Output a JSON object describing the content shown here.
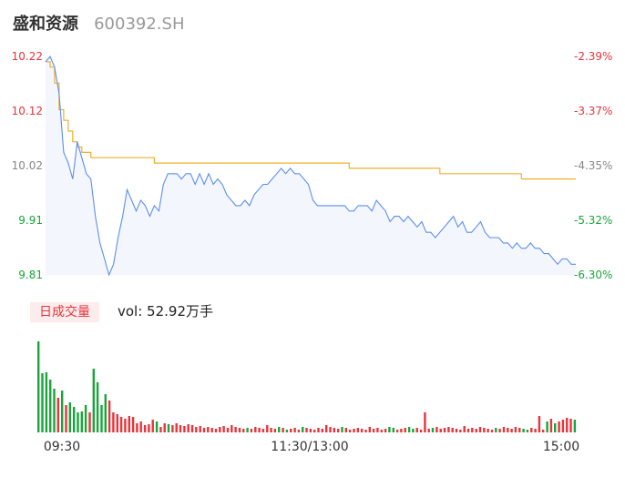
{
  "header": {
    "name": "盛和资源",
    "code": "600392.SH"
  },
  "volume_panel": {
    "tag": "日成交量",
    "vol_label": "vol: 52.92万手"
  },
  "colors": {
    "up": "#e8343a",
    "down": "#1aa53b",
    "price_line": "#5b8ff0",
    "avg_line": "#f0b030",
    "area_fill": "#f3f6fd"
  },
  "chart_data": [
    {
      "type": "line",
      "ylim": [
        9.81,
        10.22
      ],
      "y_ticks_left": [
        "10.22",
        "10.12",
        "10.02",
        "9.91",
        "9.81"
      ],
      "y_ticks_right": [
        "-2.39%",
        "-3.37%",
        "-4.35%",
        "-5.32%",
        "-6.30%"
      ],
      "x_ticks": [
        "09:30",
        "11:30/13:00",
        "15:00"
      ],
      "series": [
        {
          "values": [
            10.21,
            10.22,
            10.2,
            10.15,
            10.04,
            10.02,
            9.99,
            10.06,
            10.03,
            10.0,
            9.99,
            9.92,
            9.87,
            9.84,
            9.81,
            9.83,
            9.88,
            9.92,
            9.97,
            9.95,
            9.93,
            9.95,
            9.94,
            9.92,
            9.94,
            9.93,
            9.98,
            10.0,
            10.0,
            10.0,
            9.99,
            10.0,
            10.0,
            9.98,
            10.0,
            9.98,
            10.0,
            9.98,
            9.99,
            9.98,
            9.96,
            9.95,
            9.94,
            9.94,
            9.95,
            9.94,
            9.96,
            9.97,
            9.98,
            9.98,
            9.99,
            10.0,
            10.01,
            10.0,
            10.01,
            10.0,
            10.0,
            9.99,
            9.98,
            9.95,
            9.94,
            9.94,
            9.94,
            9.94,
            9.94,
            9.94,
            9.94,
            9.93,
            9.93,
            9.94,
            9.94,
            9.94,
            9.93,
            9.95,
            9.94,
            9.93,
            9.91,
            9.92,
            9.92,
            9.91,
            9.92,
            9.91,
            9.9,
            9.91,
            9.89,
            9.89,
            9.88,
            9.89,
            9.9,
            9.91,
            9.92,
            9.9,
            9.91,
            9.89,
            9.89,
            9.9,
            9.91,
            9.89,
            9.88,
            9.88,
            9.88,
            9.87,
            9.87,
            9.86,
            9.87,
            9.86,
            9.86,
            9.87,
            9.86,
            9.86,
            9.85,
            9.85,
            9.84,
            9.83,
            9.84,
            9.84,
            9.83,
            9.83
          ]
        },
        {
          "values": [
            10.21,
            10.2,
            10.17,
            10.12,
            10.1,
            10.08,
            10.06,
            10.05,
            10.04,
            10.04,
            10.03,
            10.03,
            10.03,
            10.03,
            10.03,
            10.03,
            10.03,
            10.03,
            10.03,
            10.03,
            10.03,
            10.03,
            10.03,
            10.03,
            10.02,
            10.02,
            10.02,
            10.02,
            10.02,
            10.02,
            10.02,
            10.02,
            10.02,
            10.02,
            10.02,
            10.02,
            10.02,
            10.02,
            10.02,
            10.02,
            10.02,
            10.02,
            10.02,
            10.02,
            10.02,
            10.02,
            10.02,
            10.02,
            10.02,
            10.02,
            10.02,
            10.02,
            10.02,
            10.02,
            10.02,
            10.02,
            10.02,
            10.02,
            10.02,
            10.02,
            10.02,
            10.02,
            10.02,
            10.02,
            10.02,
            10.02,
            10.02,
            10.01,
            10.01,
            10.01,
            10.01,
            10.01,
            10.01,
            10.01,
            10.01,
            10.01,
            10.01,
            10.01,
            10.01,
            10.01,
            10.01,
            10.01,
            10.01,
            10.01,
            10.01,
            10.01,
            10.01,
            10.0,
            10.0,
            10.0,
            10.0,
            10.0,
            10.0,
            10.0,
            10.0,
            10.0,
            10.0,
            10.0,
            10.0,
            10.0,
            10.0,
            10.0,
            10.0,
            10.0,
            10.0,
            9.99,
            9.99,
            9.99,
            9.99,
            9.99,
            9.99,
            9.99,
            9.99,
            9.99,
            9.99,
            9.99,
            9.99,
            9.99
          ]
        }
      ]
    },
    {
      "type": "bar",
      "volumes": [
        100,
        65,
        66,
        58,
        48,
        38,
        46,
        30,
        33,
        28,
        22,
        23,
        30,
        22,
        70,
        55,
        30,
        42,
        35,
        22,
        20,
        17,
        15,
        18,
        17,
        10,
        12,
        8,
        9,
        14,
        12,
        6,
        10,
        9,
        8,
        10,
        8,
        7,
        9,
        8,
        6,
        7,
        5,
        6,
        5,
        4,
        6,
        7,
        5,
        8,
        6,
        5,
        4,
        5,
        4,
        6,
        5,
        4,
        8,
        5,
        4,
        6,
        5,
        3,
        4,
        5,
        3,
        6,
        5,
        4,
        3,
        5,
        4,
        8,
        6,
        5,
        4,
        6,
        5,
        3,
        4,
        5,
        4,
        3,
        6,
        4,
        5,
        3,
        4,
        6,
        5,
        3,
        4,
        5,
        6,
        4,
        5,
        3,
        22,
        4,
        5,
        6,
        4,
        5,
        6,
        5,
        4,
        3,
        7,
        4,
        5,
        4,
        6,
        5,
        4,
        3,
        5,
        4,
        6,
        5,
        4,
        6,
        5,
        4,
        3,
        5,
        4,
        18,
        3,
        12,
        15,
        10,
        12,
        14,
        16,
        15,
        14
      ],
      "colors": [
        "down",
        "down",
        "down",
        "down",
        "down",
        "up",
        "down",
        "up",
        "down",
        "down",
        "down",
        "down",
        "down",
        "up",
        "down",
        "down",
        "down",
        "down",
        "up",
        "up",
        "up",
        "up",
        "up",
        "up",
        "up",
        "up",
        "up",
        "up",
        "up",
        "up",
        "down",
        "up",
        "up",
        "down",
        "up",
        "up",
        "up",
        "up",
        "up",
        "up",
        "up",
        "up",
        "up",
        "up",
        "up",
        "up",
        "up",
        "up",
        "up",
        "up",
        "up",
        "up",
        "up",
        "down",
        "up",
        "up",
        "up",
        "up",
        "up",
        "up",
        "up",
        "down",
        "up",
        "down",
        "up",
        "up",
        "up",
        "down",
        "up",
        "up",
        "up",
        "up",
        "up",
        "up",
        "up",
        "up",
        "up",
        "down",
        "up",
        "up",
        "up",
        "up",
        "up",
        "up",
        "up",
        "up",
        "up",
        "up",
        "up",
        "down",
        "down",
        "up",
        "up",
        "up",
        "down",
        "down",
        "up",
        "up",
        "up",
        "up",
        "down",
        "up",
        "up",
        "up",
        "up",
        "up",
        "up",
        "up",
        "up",
        "up",
        "up",
        "up",
        "up",
        "up",
        "up",
        "up",
        "down",
        "up",
        "up",
        "up",
        "up",
        "up",
        "up",
        "down",
        "down",
        "up",
        "up",
        "up",
        "up",
        "down",
        "up",
        "down",
        "up",
        "up",
        "up",
        "up",
        "down"
      ]
    }
  ]
}
